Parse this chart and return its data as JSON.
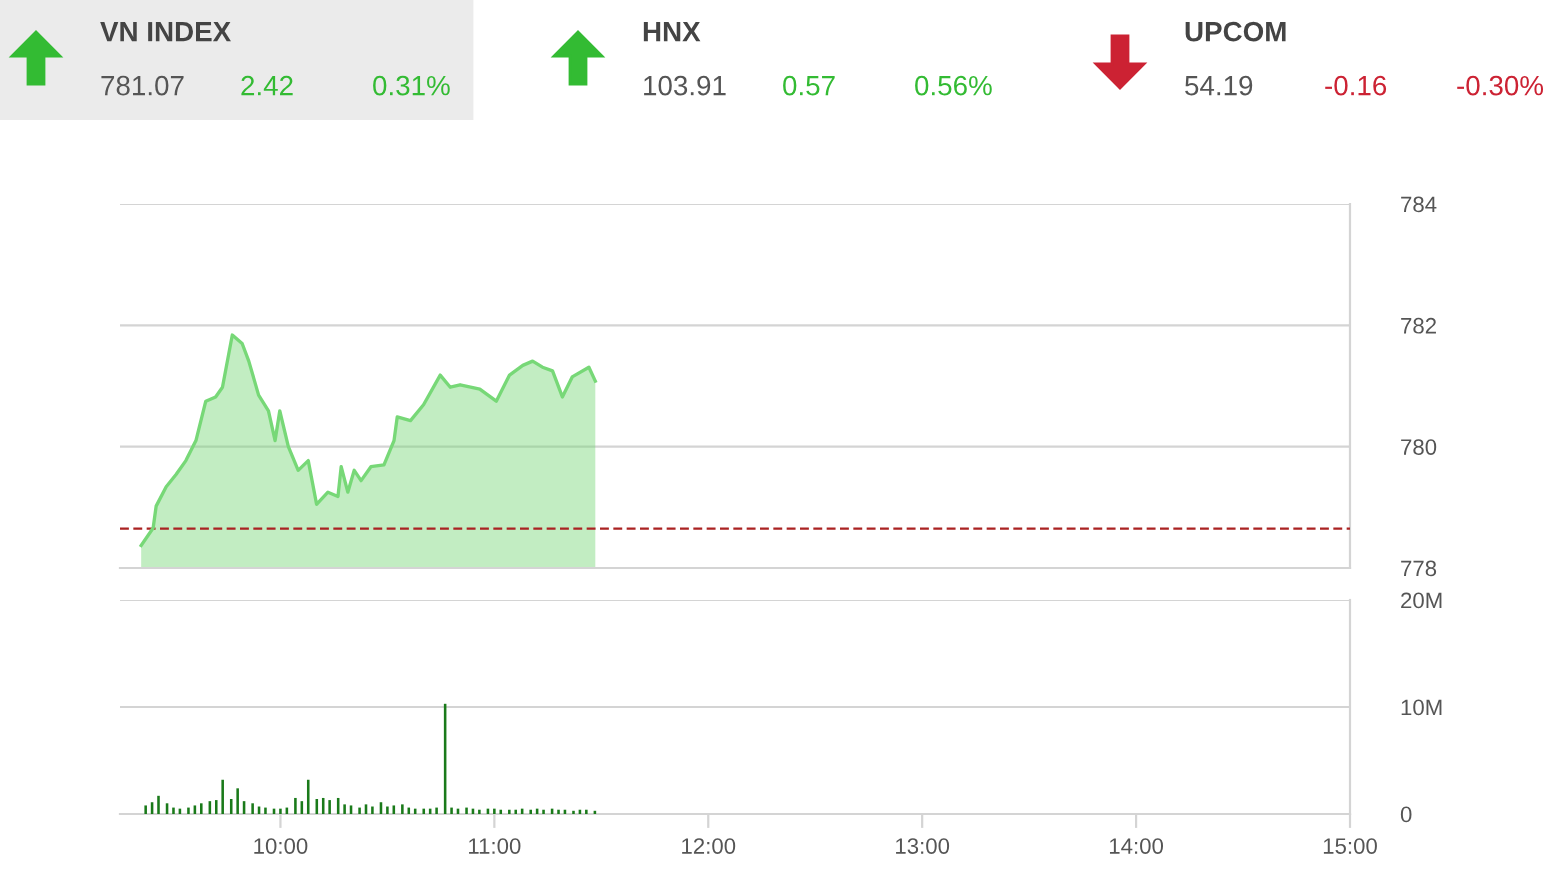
{
  "chart_data": [
    {
      "type": "other",
      "annotations": [
        "VN INDEX",
        "781.07",
        "2.42",
        "0.31%",
        "HNX",
        "103.91",
        "0.57",
        "0.56%",
        "UPCOM",
        "54.19",
        "-0.16",
        "-0.30%"
      ],
      "colors": [
        "#444444",
        "#555555",
        "#33bb33",
        "#33bb33",
        "#444444",
        "#555555",
        "#33bb33",
        "#33bb33",
        "#444444",
        "#555555",
        "#cc2233",
        "#cc2233"
      ]
    },
    {
      "type": "area",
      "xlim": [
        9.25,
        15
      ],
      "ylim": [
        778,
        784
      ],
      "yticks": [
        778,
        780,
        782,
        784
      ],
      "grid": "y",
      "tick_labels": "y",
      "series": [
        {
          "color": "#77d877",
          "x": [
            9.349,
            9.405,
            9.419,
            9.466,
            9.512,
            9.558,
            9.605,
            9.651,
            9.697,
            9.729,
            9.775,
            9.821,
            9.852,
            9.898,
            9.944,
            9.975,
            9.997,
            10.037,
            10.083,
            10.13,
            10.169,
            10.222,
            10.269,
            10.284,
            10.315,
            10.345,
            10.377,
            10.423,
            10.484,
            10.531,
            10.546,
            10.608,
            10.669,
            10.747,
            10.794,
            10.84,
            10.932,
            11.009,
            11.071,
            11.133,
            11.179,
            11.225,
            11.272,
            11.318,
            11.364,
            11.442,
            11.472
          ],
          "values": [
            778.37,
            778.66,
            779.02,
            779.34,
            779.54,
            779.77,
            780.1,
            780.75,
            780.82,
            780.98,
            781.84,
            781.7,
            781.41,
            780.85,
            780.59,
            780.1,
            780.59,
            780.0,
            779.61,
            779.77,
            779.05,
            779.25,
            779.18,
            779.67,
            779.25,
            779.61,
            779.44,
            779.67,
            779.7,
            780.1,
            780.49,
            780.43,
            780.69,
            781.18,
            780.98,
            781.02,
            780.95,
            780.75,
            781.18,
            781.34,
            781.41,
            781.31,
            781.25,
            780.82,
            781.15,
            781.31,
            781.08
          ]
        }
      ],
      "ref_lines": [
        {
          "axis": "y",
          "value": 778.65,
          "color": "#aa2222",
          "line_style": "dashed"
        }
      ]
    },
    {
      "type": "bar",
      "xlim": [
        9.25,
        15
      ],
      "ylim": [
        0,
        20
      ],
      "yticks": [
        0,
        {
          "value": 10,
          "label": "10M"
        },
        {
          "value": 20,
          "label": "20M"
        }
      ],
      "grid": "y",
      "xticks": [
        {
          "value": 10,
          "label": "10:00"
        },
        {
          "value": 11,
          "label": "11:00"
        },
        {
          "value": 12,
          "label": "12:00"
        },
        {
          "value": 13,
          "label": "13:00"
        },
        {
          "value": 14,
          "label": "14:00"
        },
        {
          "value": 15,
          "label": "15:00"
        }
      ],
      "x": [
        9.37,
        9.4,
        9.43,
        9.47,
        9.5,
        9.53,
        9.57,
        9.6,
        9.63,
        9.67,
        9.7,
        9.73,
        9.77,
        9.8,
        9.83,
        9.87,
        9.9,
        9.93,
        9.97,
        10.0,
        10.03,
        10.07,
        10.1,
        10.13,
        10.17,
        10.2,
        10.23,
        10.27,
        10.3,
        10.33,
        10.37,
        10.4,
        10.43,
        10.47,
        10.5,
        10.53,
        10.57,
        10.6,
        10.63,
        10.67,
        10.7,
        10.73,
        10.77,
        10.8,
        10.83,
        10.87,
        10.9,
        10.93,
        10.97,
        11.0,
        11.03,
        11.07,
        11.1,
        11.13,
        11.17,
        11.2,
        11.23,
        11.27,
        11.3,
        11.33,
        11.37,
        11.4,
        11.43,
        11.47
      ],
      "series": [
        {
          "color": "#1a7a1a",
          "values": [
            0.8,
            1.1,
            1.7,
            1.0,
            0.6,
            0.5,
            0.6,
            0.8,
            1.0,
            1.2,
            1.3,
            3.2,
            1.4,
            2.4,
            1.2,
            1.0,
            0.7,
            0.6,
            0.5,
            0.5,
            0.6,
            1.5,
            1.2,
            3.2,
            1.4,
            1.5,
            1.3,
            1.5,
            0.9,
            0.8,
            0.6,
            0.9,
            0.7,
            1.1,
            0.7,
            0.8,
            0.9,
            0.6,
            0.5,
            0.5,
            0.5,
            0.6,
            10.3,
            0.6,
            0.5,
            0.6,
            0.5,
            0.4,
            0.5,
            0.5,
            0.4,
            0.4,
            0.4,
            0.5,
            0.4,
            0.5,
            0.4,
            0.5,
            0.4,
            0.4,
            0.3,
            0.4,
            0.4,
            0.3
          ]
        }
      ]
    }
  ]
}
